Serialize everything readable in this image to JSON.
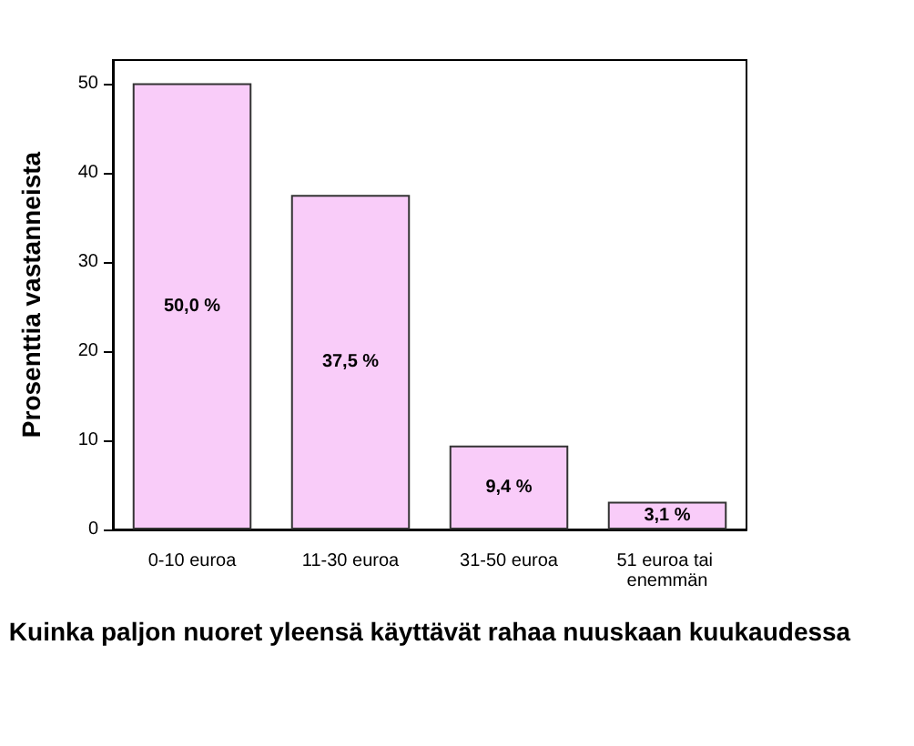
{
  "chart_data": {
    "type": "bar",
    "xlabel": "Kuinka paljon nuoret yleensä käyttävät rahaa nuuskaan kuukaudessa",
    "ylabel": "Prosenttia vastanneista",
    "categories": [
      "0-10 euroa",
      "11-30 euroa",
      "31-50 euroa",
      "51 euroa tai enemmän"
    ],
    "values": [
      50.0,
      37.5,
      9.4,
      3.1
    ],
    "value_labels": [
      "50,0 %",
      "37,5 %",
      "9,4 %",
      "3,1 %"
    ],
    "color": "#f9ccf9",
    "ylim": [
      0,
      52.6
    ],
    "yticks": [
      0,
      10,
      20,
      30,
      40,
      50
    ],
    "grid": false
  }
}
